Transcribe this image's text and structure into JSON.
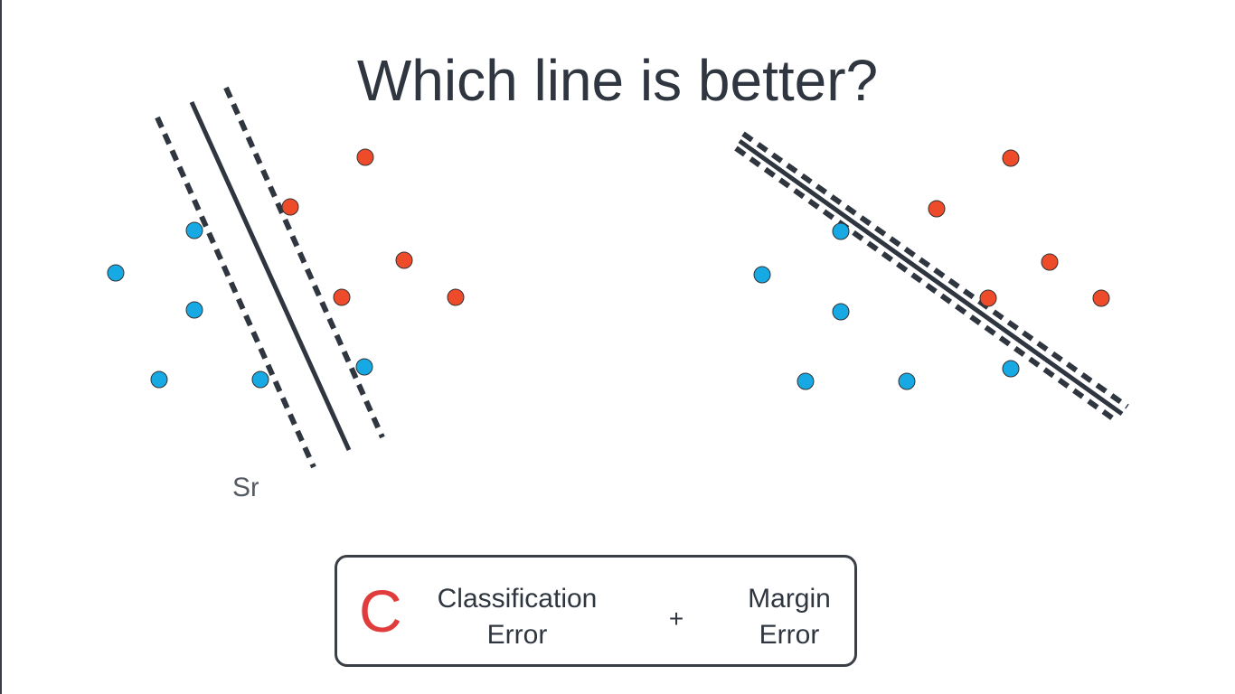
{
  "title": "Which line is better?",
  "partial_label": "Sr",
  "formula": {
    "constant": "C",
    "term1_line1": "Classification",
    "term1_line2": "Error",
    "operator": "+",
    "term2_line1": "Margin",
    "term2_line2": "Error"
  },
  "colors": {
    "positive_point": "#ee4b2b",
    "negative_point": "#17a9e3",
    "line": "#2f3640",
    "constant": "#e03c3c"
  },
  "icons": {
    "positive_point": "red-circle-icon",
    "negative_point": "blue-circle-icon"
  }
}
